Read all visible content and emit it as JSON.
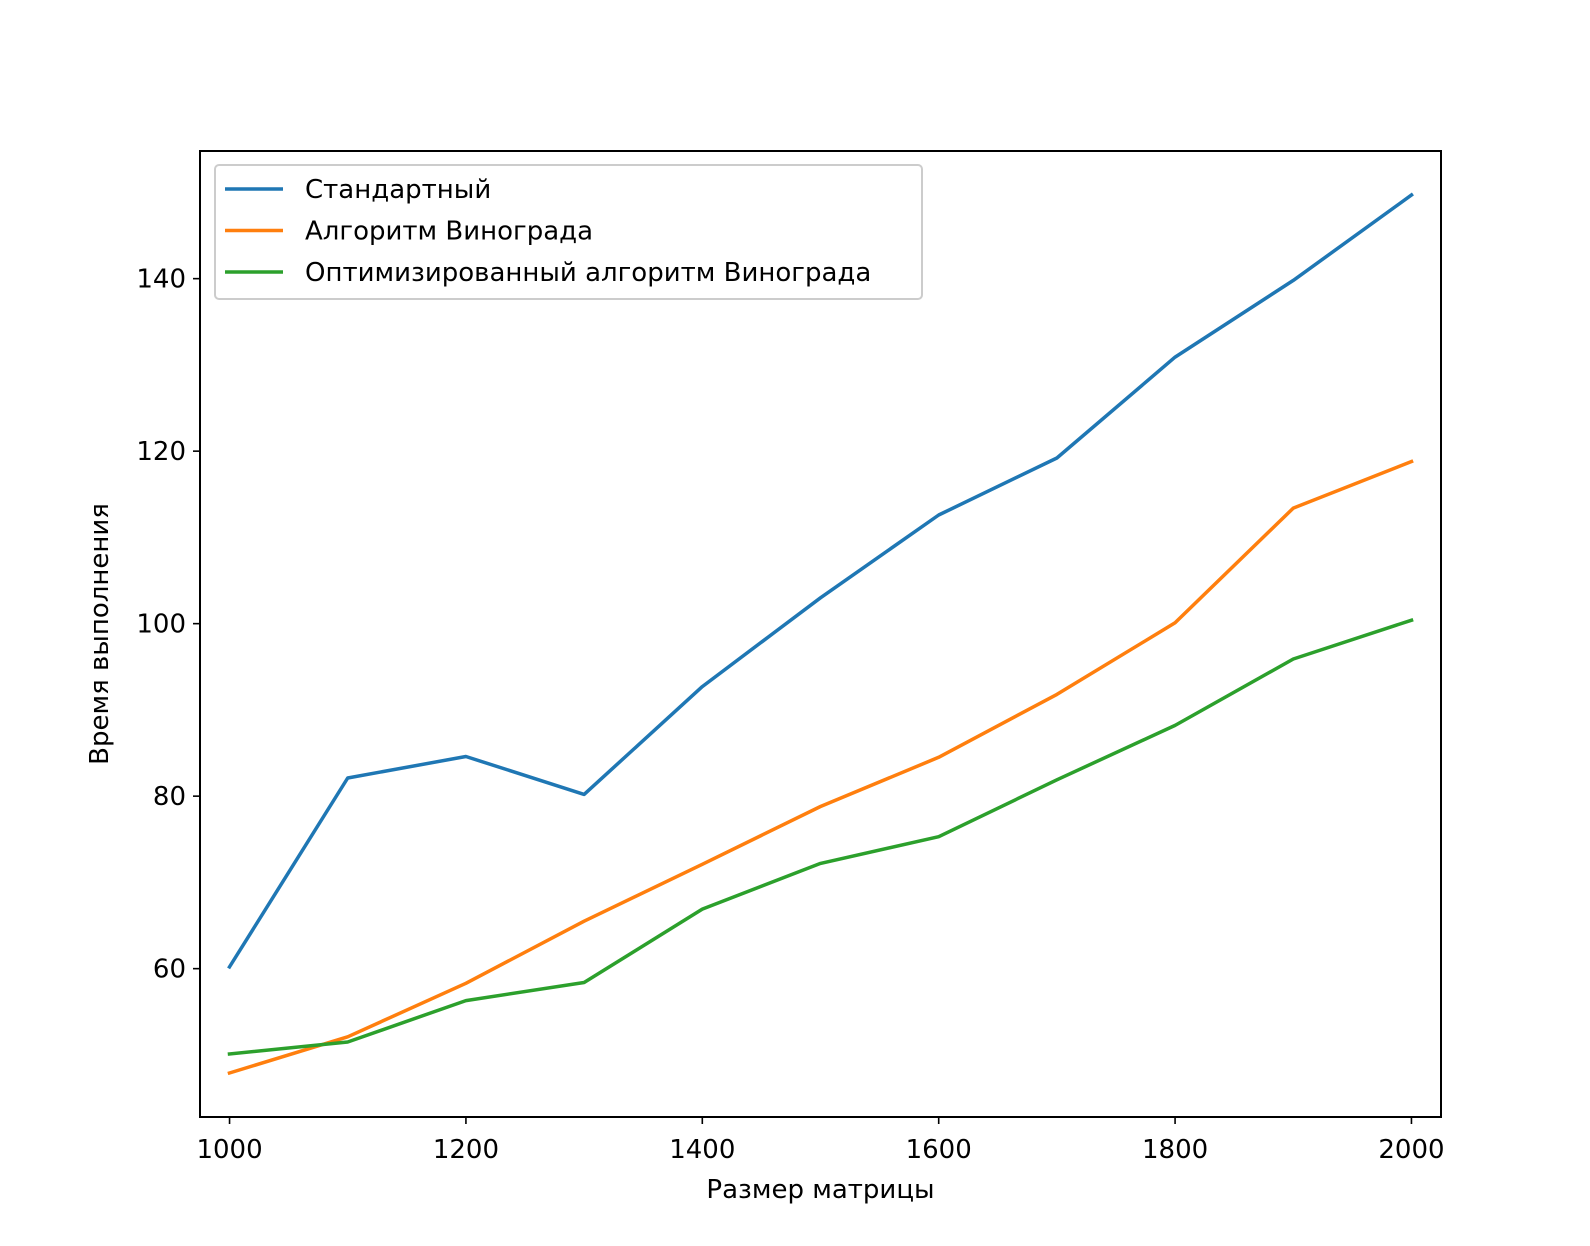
{
  "chart_data": {
    "type": "line",
    "x": [
      1000,
      1100,
      1200,
      1300,
      1400,
      1500,
      1600,
      1700,
      1800,
      1900,
      2000
    ],
    "series": [
      {
        "name": "Стандартный",
        "color": "#1f77b4",
        "values": [
          60.2,
          82.1,
          84.6,
          80.2,
          92.7,
          103.0,
          112.6,
          119.2,
          130.9,
          139.8,
          149.7
        ]
      },
      {
        "name": "Алгоритм Винограда",
        "color": "#ff7f0e",
        "values": [
          47.9,
          52.1,
          58.3,
          65.5,
          72.1,
          78.8,
          84.5,
          91.8,
          100.1,
          113.4,
          118.8
        ]
      },
      {
        "name": "Оптимизированный алгоритм Винограда",
        "color": "#2ca02c",
        "values": [
          50.1,
          51.5,
          56.3,
          58.4,
          66.9,
          72.2,
          75.3,
          81.9,
          88.2,
          95.9,
          100.4
        ]
      }
    ],
    "xlabel": "Размер матрицы",
    "ylabel": "Время выполнения",
    "xticks": [
      1000,
      1200,
      1400,
      1600,
      1800,
      2000
    ],
    "yticks": [
      60,
      80,
      100,
      120,
      140
    ],
    "xlim": [
      975,
      2025
    ],
    "ylim": [
      42.8,
      154.8
    ],
    "grid": false,
    "legend_position": "top-left"
  }
}
